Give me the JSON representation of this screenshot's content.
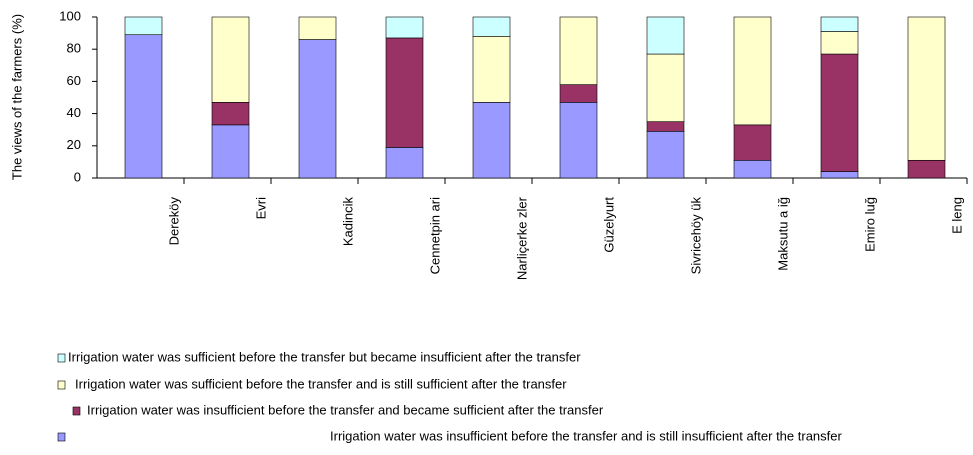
{
  "chart_data": {
    "type": "stacked_bar",
    "y_label": "The views of the farmers (%)",
    "categories": [
      "Dereköy",
      "Evri",
      "Kadincik",
      "Cennetpin ari",
      "Narliçerke zler",
      "Güzelyurt",
      "Sivricehöy ük",
      "Maksutu a iğ",
      "Emiro luğ",
      "E leng"
    ],
    "series": [
      {
        "name": "Irrigation water was insufficient before the transfer and is still insufficient after the transfer",
        "color": "#9999ff",
        "values": [
          89,
          33,
          86,
          19,
          47,
          47,
          29,
          11,
          4,
          0
        ]
      },
      {
        "name": "Irrigation water was insufficient before the transfer and became sufficient after the transfer",
        "color": "#993366",
        "values": [
          0,
          14,
          0,
          68,
          0,
          11,
          6,
          22,
          73,
          11
        ]
      },
      {
        "name": "Irrigation water was sufficient before the transfer and is still sufficient after the transfer",
        "color": "#ffffcc",
        "values": [
          0,
          53,
          14,
          0,
          41,
          42,
          42,
          67,
          14,
          89
        ]
      },
      {
        "name": "Irrigation water was sufficient before the transfer but became insufficient after  the transfer",
        "color": "#ccffff",
        "values": [
          11,
          0,
          0,
          13,
          12,
          0,
          23,
          0,
          9,
          0
        ]
      }
    ],
    "ylim": [
      0,
      100
    ],
    "yticks": [
      0,
      20,
      40,
      60,
      80,
      100
    ],
    "grid": false
  }
}
